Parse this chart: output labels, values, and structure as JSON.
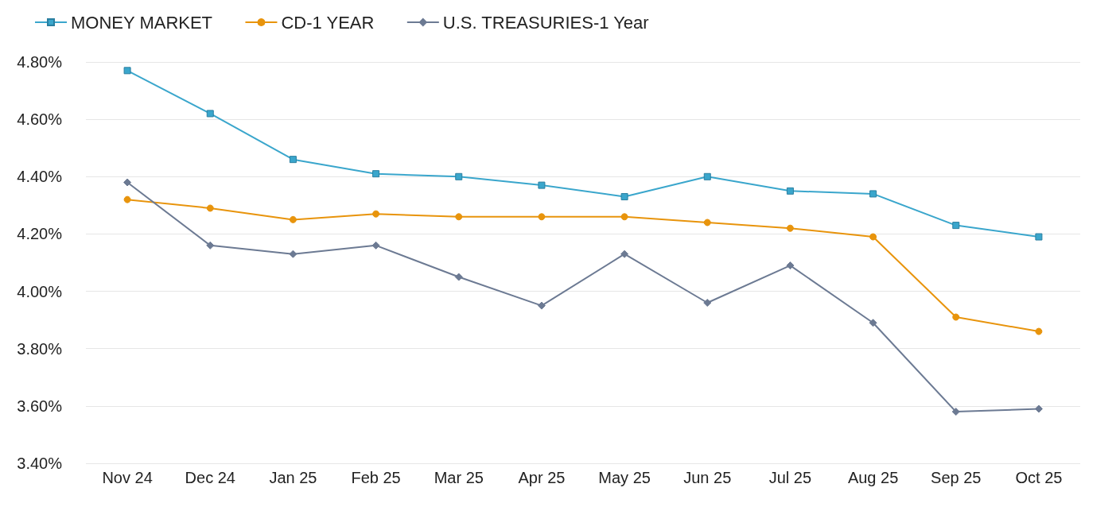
{
  "chart_data": {
    "type": "line",
    "categories": [
      "Nov 24",
      "Dec 24",
      "Jan 25",
      "Feb 25",
      "Mar 25",
      "Apr 25",
      "May 25",
      "Jun 25",
      "Jul 25",
      "Aug 25",
      "Sep 25",
      "Oct 25"
    ],
    "series": [
      {
        "name": "MONEY MARKET",
        "color": "#3aa6cc",
        "marker": "square",
        "values": [
          4.77,
          4.62,
          4.46,
          4.41,
          4.4,
          4.37,
          4.33,
          4.4,
          4.35,
          4.34,
          4.23,
          4.19
        ]
      },
      {
        "name": "CD-1 YEAR",
        "color": "#e8940c",
        "marker": "circle",
        "values": [
          4.32,
          4.29,
          4.25,
          4.27,
          4.26,
          4.26,
          4.26,
          4.24,
          4.22,
          4.19,
          3.91,
          3.86
        ]
      },
      {
        "name": "U.S. TREASURIES-1 Year",
        "color": "#6c7a93",
        "marker": "diamond",
        "values": [
          4.38,
          4.16,
          4.13,
          4.16,
          4.05,
          3.95,
          4.13,
          3.96,
          4.09,
          3.89,
          3.58,
          3.59
        ]
      }
    ],
    "ylim": [
      3.4,
      4.8
    ],
    "yticks": [
      {
        "value": 3.4,
        "label": "3.40%"
      },
      {
        "value": 3.6,
        "label": "3.60%"
      },
      {
        "value": 3.8,
        "label": "3.80%"
      },
      {
        "value": 4.0,
        "label": "4.00%"
      },
      {
        "value": 4.2,
        "label": "4.20%"
      },
      {
        "value": 4.4,
        "label": "4.40%"
      },
      {
        "value": 4.6,
        "label": "4.60%"
      },
      {
        "value": 4.8,
        "label": "4.80%"
      }
    ],
    "grid": "y",
    "legend": "top left",
    "line_style": "solid"
  }
}
